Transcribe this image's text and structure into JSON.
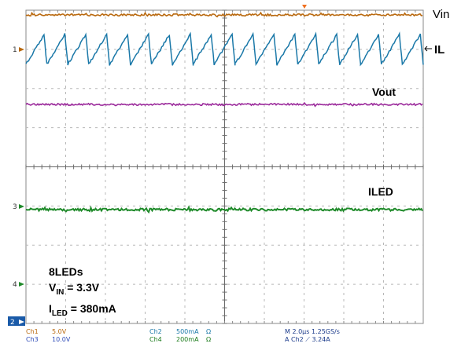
{
  "chart_data": {
    "type": "line",
    "channel_labels": {
      "vin": "Vin",
      "il": "IL",
      "vout": "Vout",
      "iled": "ILED"
    },
    "ground_markers": [
      "1",
      "3",
      "4",
      "2"
    ],
    "annotation": {
      "line1": "8LEDs",
      "vin_symbol": "V",
      "vin_sub": "IN",
      "vin_value": " = 3.3V",
      "iled_symbol": "I",
      "iled_sub": "LED",
      "iled_value": " = 380mA"
    },
    "settings": {
      "ch1_name": "Ch1",
      "ch1_scale": "5.0V",
      "ch3_name": "Ch3",
      "ch3_scale": "10.0V",
      "ch2_name": "Ch2",
      "ch2_scale": "500mA",
      "ch2_unit": "Ω",
      "ch4_name": "Ch4",
      "ch4_scale": "200mA",
      "ch4_unit": "Ω",
      "timebase": "M 2.0µs 1.25GS/s",
      "trigger": "A  Ch2  ⟋  3.24A"
    },
    "grid": {
      "divisions_x": 10,
      "divisions_y": 8
    },
    "il_ramp_cycles": 19,
    "colors": {
      "vin": "#b9690f",
      "il": "#1a78a8",
      "vout": "#9b2a9b",
      "iled": "#1f8a2a",
      "grid": "#b8b8b8",
      "frame": "#888888",
      "trigger": "#f07020"
    }
  }
}
